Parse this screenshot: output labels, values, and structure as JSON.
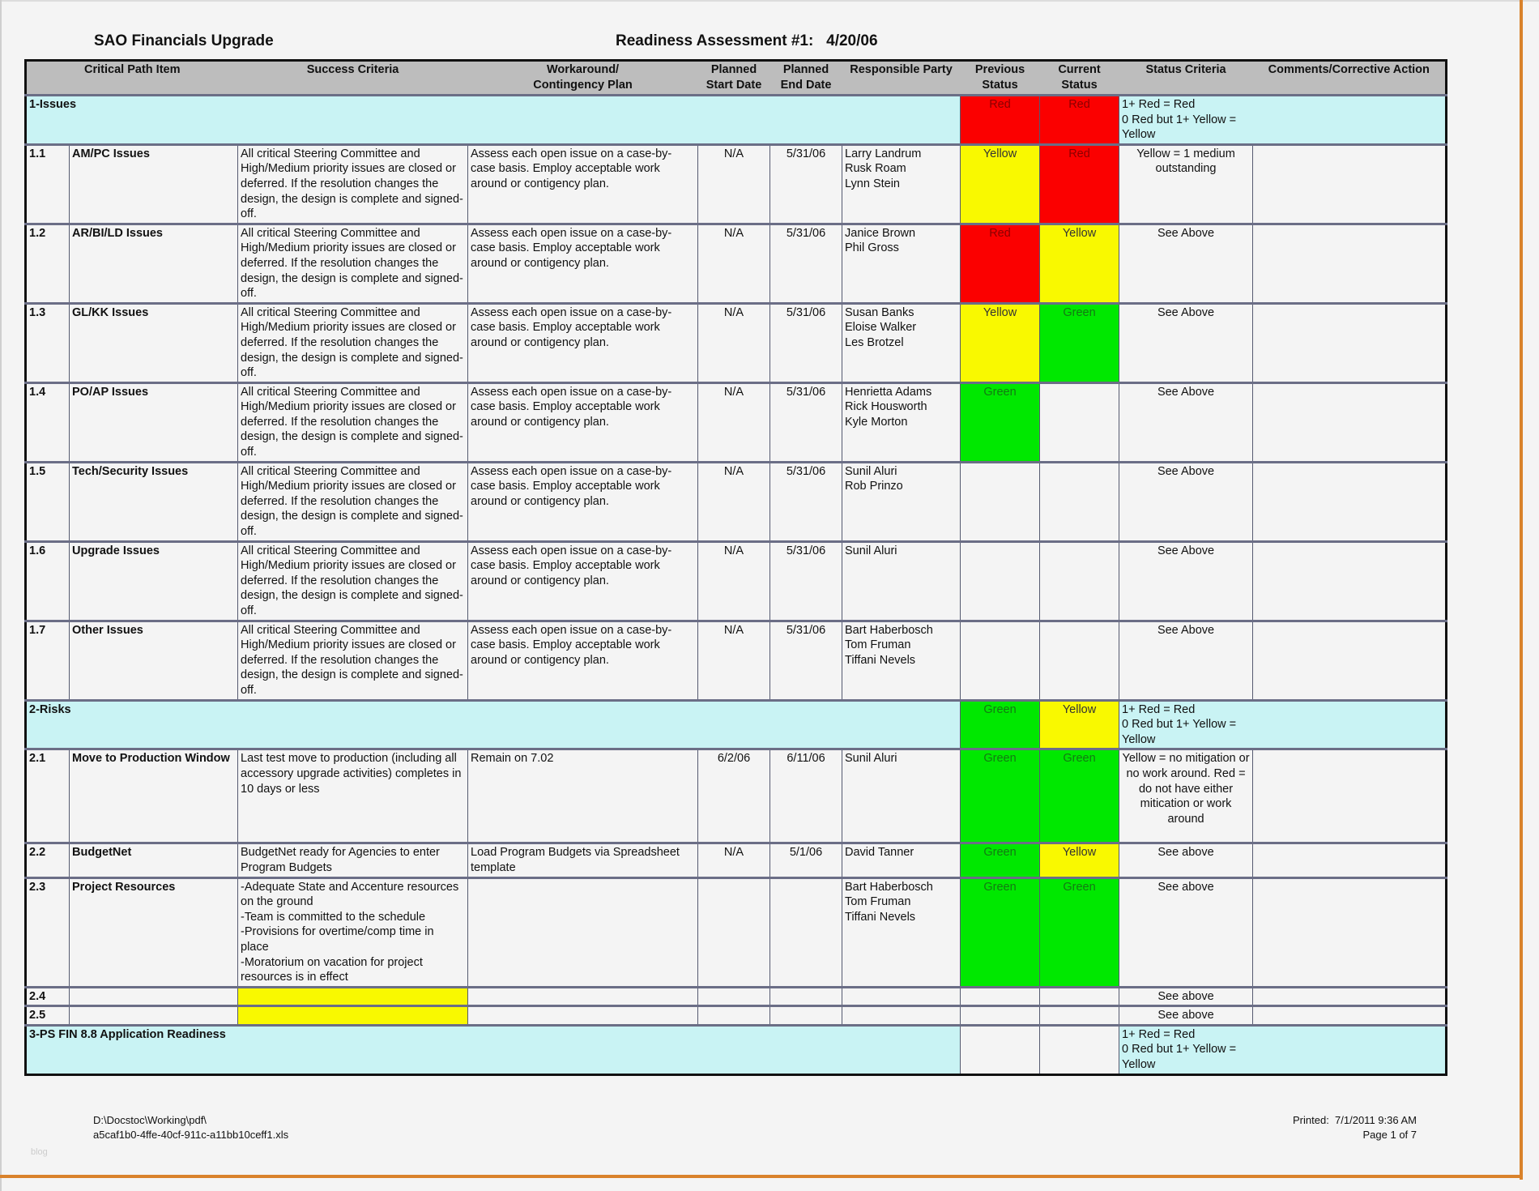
{
  "header": {
    "project_title": "SAO Financials Upgrade",
    "assessment_title": "Readiness Assessment #1:   4/20/06"
  },
  "colors": {
    "red": "#fb0000",
    "yellow": "#f9f900",
    "green": "#00e800",
    "section_bg": "#c9f3f4",
    "header_bg": "#bdbdbd",
    "frame_orange": "#d9822b"
  },
  "columns": [
    "Critical Path Item",
    "Success Criteria",
    "Workaround/\nContingency Plan",
    "Planned\nStart Date",
    "Planned\nEnd Date",
    "Responsible Party",
    "Previous\nStatus",
    "Current\nStatus",
    "Status Criteria",
    "Comments/Corrective Action"
  ],
  "sections": [
    {
      "label": "1-Issues",
      "previous_status": "Red",
      "current_status": "Red",
      "status_criteria": "1+ Red = Red\n0 Red but 1+ Yellow =\nYellow",
      "items": [
        {
          "id": "1.1",
          "name": "AM/PC Issues",
          "success": "All critical Steering Committee and High/Medium priority issues are closed or deferred.  If the resolution changes the design, the design is complete and signed-off.",
          "workaround": "Assess each open issue on a case-by-case basis.  Employ acceptable work around or contigency plan.",
          "start": "N/A",
          "end": "5/31/06",
          "party": "Larry Landrum\nRusk Roam\nLynn Stein",
          "previous": "Yellow",
          "current": "Red",
          "criteria": "Yellow = 1 medium outstanding",
          "comments": ""
        },
        {
          "id": "1.2",
          "name": "AR/BI/LD Issues",
          "success": "All critical Steering Committee and High/Medium priority issues are closed or deferred.  If the resolution changes the design, the design is complete and signed-off.",
          "workaround": "Assess each open issue on a case-by-case basis.  Employ acceptable work around or contigency plan.",
          "start": "N/A",
          "end": "5/31/06",
          "party": "Janice Brown\nPhil Gross",
          "previous": "Red",
          "current": "Yellow",
          "criteria": "See Above",
          "comments": ""
        },
        {
          "id": "1.3",
          "name": "GL/KK Issues",
          "success": "All critical Steering Committee and High/Medium priority issues are closed or deferred.  If the resolution changes the design, the design is complete and signed-off.",
          "workaround": "Assess each open issue on a case-by-case basis.  Employ acceptable work around or contigency plan.",
          "start": "N/A",
          "end": "5/31/06",
          "party": "Susan Banks\nEloise Walker\nLes Brotzel",
          "previous": "Yellow",
          "current": "Green",
          "criteria": "See Above",
          "comments": ""
        },
        {
          "id": "1.4",
          "name": "PO/AP Issues",
          "success": "All critical Steering Committee and High/Medium priority issues are closed or deferred.  If the resolution changes the design, the design is complete and signed-off.",
          "workaround": "Assess each open issue on a case-by-case basis.  Employ acceptable work around or contigency plan.",
          "start": "N/A",
          "end": "5/31/06",
          "party": "Henrietta Adams\nRick Housworth\nKyle Morton",
          "previous": "Green",
          "current": "",
          "criteria": "See Above",
          "comments": ""
        },
        {
          "id": "1.5",
          "name": "Tech/Security Issues",
          "success": "All critical Steering Committee and High/Medium priority issues are closed or deferred.  If the resolution changes the design, the design is complete and signed-off.",
          "workaround": "Assess each open issue on a case-by-case basis.  Employ acceptable work around or contigency plan.",
          "start": "N/A",
          "end": "5/31/06",
          "party": "Sunil Aluri\nRob Prinzo",
          "previous": "",
          "current": "",
          "criteria": "See Above",
          "comments": ""
        },
        {
          "id": "1.6",
          "name": "Upgrade Issues",
          "success": "All critical Steering Committee and High/Medium priority issues are closed or deferred.  If the resolution changes the design, the design is complete and signed-off.",
          "workaround": "Assess each open issue on a case-by-case basis.  Employ acceptable work around or contigency plan.",
          "start": "N/A",
          "end": "5/31/06",
          "party": "Sunil Aluri",
          "previous": "",
          "current": "",
          "criteria": "See Above",
          "comments": ""
        },
        {
          "id": "1.7",
          "name": "Other Issues",
          "success": "All critical Steering Committee and High/Medium priority issues are closed or deferred.  If the resolution changes the design, the design is complete and signed-off.",
          "workaround": "Assess each open issue on a case-by-case basis.  Employ acceptable work around or contigency plan.",
          "start": "N/A",
          "end": "5/31/06",
          "party": "Bart Haberbosch\nTom Fruman\nTiffani Nevels",
          "previous": "",
          "current": "",
          "criteria": "See Above",
          "comments": ""
        }
      ]
    },
    {
      "label": "2-Risks",
      "previous_status": "Green",
      "current_status": "Yellow",
      "status_criteria": "1+ Red = Red\n0 Red but 1+ Yellow =\nYellow",
      "items": [
        {
          "id": "2.1",
          "name": "Move to Production Window",
          "success": "Last test move to production (including all accessory upgrade activities) completes in 10 days or less",
          "workaround": "Remain on 7.02",
          "start": "6/2/06",
          "end": "6/11/06",
          "party": "Sunil Aluri",
          "previous": "Green",
          "current": "Green",
          "criteria": "Yellow = no mitigation or no work around. Red = do not have either mitication or work around",
          "comments": ""
        },
        {
          "id": "2.2",
          "name": "BudgetNet",
          "success": "BudgetNet ready for Agencies to enter Program Budgets",
          "workaround": "Load Program Budgets via Spreadsheet template",
          "start": "N/A",
          "end": "5/1/06",
          "party": "David Tanner",
          "previous": "Green",
          "current": "Yellow",
          "criteria": "See above",
          "comments": ""
        },
        {
          "id": "2.3",
          "name": "Project Resources",
          "success": "-Adequate State and Accenture resources on the ground\n-Team is committed to the schedule\n-Provisions for overtime/comp time in place\n-Moratorium on vacation for project resources is in effect",
          "workaround": "",
          "start": "",
          "end": "",
          "party": "Bart Haberbosch\nTom Fruman\nTiffani Nevels",
          "previous": "Green",
          "current": "Green",
          "criteria": "See above",
          "comments": ""
        },
        {
          "id": "2.4",
          "name": "",
          "success": "",
          "workaround": "",
          "start": "",
          "end": "",
          "party": "",
          "previous": "",
          "current": "",
          "criteria": "See above",
          "comments": ""
        },
        {
          "id": "2.5",
          "name": "",
          "success": "",
          "workaround": "",
          "start": "",
          "end": "",
          "party": "",
          "previous": "",
          "current": "",
          "criteria": "See above",
          "comments": ""
        }
      ]
    },
    {
      "label": "3-PS FIN 8.8 Application Readiness",
      "previous_status": "",
      "current_status": "",
      "status_criteria": "1+ Red = Red\n0 Red but 1+ Yellow =\nYellow",
      "items": []
    }
  ],
  "footer": {
    "path_line1": "D:\\Docstoc\\Working\\pdf\\",
    "path_line2": "a5caf1b0-4ffe-40cf-911c-a11bb10ceff1.xls",
    "printed": "Printed:  7/1/2011 9:36 AM",
    "page": "Page 1 of 7",
    "watermark": "blog"
  }
}
